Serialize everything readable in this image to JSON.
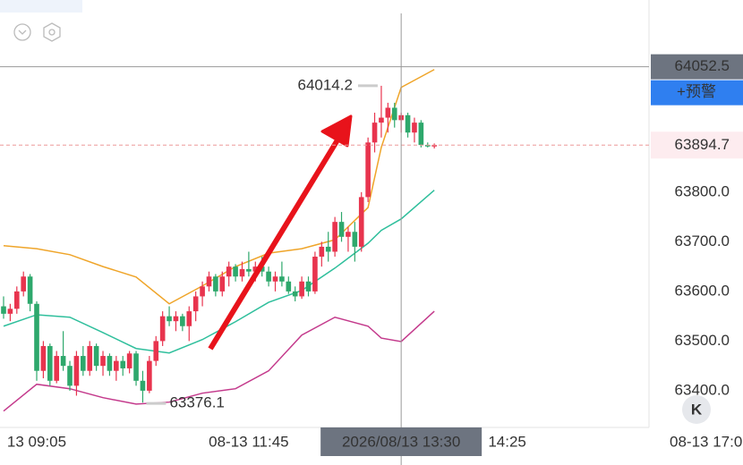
{
  "chart_data": {
    "type": "candlestick",
    "up_color": "#e8344e",
    "down_color": "#2ea86c",
    "ylim": [
      63326,
      64187
    ],
    "yticks": [
      {
        "value": 63400,
        "label": "63400.0"
      },
      {
        "value": 63500,
        "label": "63500.0"
      },
      {
        "value": 63600,
        "label": "63600.0"
      },
      {
        "value": 63700,
        "label": "63700.0"
      },
      {
        "value": 63800,
        "label": "63800.0"
      }
    ],
    "xlim": [
      -0.54,
      97.4
    ],
    "xticks": [
      {
        "value": 5,
        "label": "13 09:05"
      },
      {
        "value": 37,
        "label": "08-13 11:45"
      },
      {
        "value": 76,
        "label": "14:25"
      },
      {
        "value": 106,
        "label": "08-13 17:0"
      }
    ],
    "ohlc": [
      [
        63570,
        63590,
        63545,
        63555
      ],
      [
        63555,
        63575,
        63540,
        63565
      ],
      [
        63565,
        63610,
        63555,
        63600
      ],
      [
        63600,
        63640,
        63590,
        63630
      ],
      [
        63630,
        63635,
        63560,
        63575
      ],
      [
        63575,
        63580,
        63420,
        63440
      ],
      [
        63440,
        63500,
        63425,
        63490
      ],
      [
        63490,
        63495,
        63410,
        63420
      ],
      [
        63420,
        63480,
        63415,
        63470
      ],
      [
        63470,
        63520,
        63440,
        63450
      ],
      [
        63450,
        63460,
        63400,
        63410
      ],
      [
        63410,
        63480,
        63390,
        63470
      ],
      [
        63470,
        63490,
        63430,
        63440
      ],
      [
        63440,
        63500,
        63430,
        63490
      ],
      [
        63490,
        63495,
        63440,
        63450
      ],
      [
        63450,
        63480,
        63430,
        63470
      ],
      [
        63470,
        63475,
        63430,
        63440
      ],
      [
        63440,
        63470,
        63420,
        63460
      ],
      [
        63460,
        63470,
        63430,
        63445
      ],
      [
        63445,
        63480,
        63435,
        63475
      ],
      [
        63475,
        63480,
        63410,
        63420
      ],
      [
        63420,
        63440,
        63376.1,
        63400
      ],
      [
        63400,
        63470,
        63395,
        63460
      ],
      [
        63460,
        63510,
        63450,
        63500
      ],
      [
        63500,
        63560,
        63490,
        63550
      ],
      [
        63550,
        63570,
        63530,
        63540
      ],
      [
        63540,
        63560,
        63520,
        63550
      ],
      [
        63550,
        63555,
        63520,
        63530
      ],
      [
        63530,
        63570,
        63500,
        63560
      ],
      [
        63560,
        63600,
        63540,
        63590
      ],
      [
        63590,
        63620,
        63570,
        63610
      ],
      [
        63610,
        63640,
        63600,
        63630
      ],
      [
        63630,
        63635,
        63590,
        63600
      ],
      [
        63600,
        63640,
        63590,
        63630
      ],
      [
        63630,
        63660,
        63610,
        63650
      ],
      [
        63650,
        63655,
        63620,
        63630
      ],
      [
        63630,
        63660,
        63620,
        63645
      ],
      [
        63645,
        63680,
        63630,
        63640
      ],
      [
        63640,
        63660,
        63620,
        63650
      ],
      [
        63650,
        63670,
        63630,
        63640
      ],
      [
        63640,
        63650,
        63610,
        63620
      ],
      [
        63620,
        63640,
        63600,
        63630
      ],
      [
        63630,
        63660,
        63610,
        63620
      ],
      [
        63620,
        63630,
        63595,
        63600
      ],
      [
        63600,
        63610,
        63580,
        63590
      ],
      [
        63590,
        63630,
        63585,
        63620
      ],
      [
        63620,
        63630,
        63590,
        63600
      ],
      [
        63600,
        63680,
        63595,
        63670
      ],
      [
        63670,
        63700,
        63650,
        63690
      ],
      [
        63690,
        63720,
        63660,
        63680
      ],
      [
        63680,
        63750,
        63670,
        63740
      ],
      [
        63740,
        63760,
        63700,
        63710
      ],
      [
        63710,
        63730,
        63680,
        63720
      ],
      [
        63720,
        63740,
        63660,
        63690
      ],
      [
        63690,
        63800,
        63680,
        63790
      ],
      [
        63790,
        63910,
        63780,
        63900
      ],
      [
        63900,
        63960,
        63880,
        63940
      ],
      [
        63940,
        64014.2,
        63910,
        63950
      ],
      [
        63950,
        63980,
        63920,
        63970
      ],
      [
        63970,
        63980,
        63930,
        63945
      ],
      [
        63945,
        63960,
        63920,
        63955
      ],
      [
        63955,
        63960,
        63910,
        63920
      ],
      [
        63920,
        63950,
        63900,
        63940
      ],
      [
        63940,
        63945,
        63890,
        63895
      ],
      [
        63895,
        63900,
        63890,
        63892
      ],
      [
        63892,
        63898,
        63888,
        63894.7
      ]
    ],
    "lines": [
      {
        "color": "#efa52a",
        "x": [
          0,
          5,
          10,
          15,
          20,
          25,
          30,
          35,
          40,
          45,
          50,
          55,
          57,
          60,
          65
        ],
        "values": [
          63692,
          63686,
          63674,
          63650,
          63629,
          63575,
          63611,
          63650,
          63677,
          63686,
          63704,
          63769,
          63890,
          64011,
          64047
        ]
      },
      {
        "color": "#2fbf9c",
        "x": [
          0,
          5,
          10,
          15,
          20,
          25,
          30,
          35,
          40,
          45,
          50,
          55,
          57,
          60,
          65
        ],
        "values": [
          63530,
          63553,
          63548,
          63517,
          63485,
          63476,
          63503,
          63539,
          63578,
          63602,
          63647,
          63697,
          63723,
          63746,
          63804
        ]
      },
      {
        "color": "#c43a8c",
        "x": [
          0,
          5,
          10,
          15,
          20,
          25,
          30,
          35,
          40,
          45,
          50,
          55,
          57,
          60,
          65
        ],
        "values": [
          63359,
          63413,
          63404,
          63386,
          63373,
          63377,
          63395,
          63404,
          63440,
          63512,
          63548,
          63530,
          63506,
          63499,
          63560
        ]
      }
    ],
    "crosshair": {
      "x": 60,
      "x_label": "2026/08/13 13:30",
      "y": 64052.5
    },
    "alert_button": "+预警",
    "collapse_button": "K"
  }
}
